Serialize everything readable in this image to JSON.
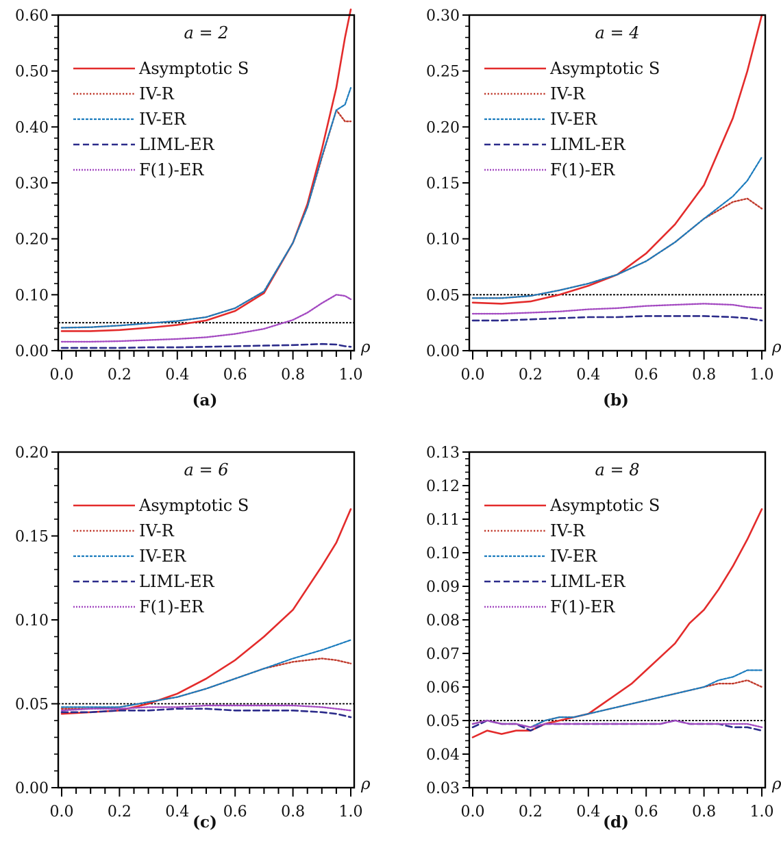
{
  "chart_data": [
    {
      "type": "line",
      "panel_label": "(a)",
      "title": "a = 2",
      "xlabel": "ρ",
      "xlim": [
        0,
        1
      ],
      "ylim": [
        0,
        0.6
      ],
      "xticks": [
        "0.0",
        "0.2",
        "0.4",
        "0.6",
        "0.8",
        "1.0"
      ],
      "yticks": [
        "0.00",
        "0.10",
        "0.20",
        "0.30",
        "0.40",
        "0.50",
        "0.60"
      ],
      "reference_line": 0.05,
      "x": [
        0.0,
        0.1,
        0.2,
        0.3,
        0.4,
        0.5,
        0.6,
        0.7,
        0.8,
        0.85,
        0.9,
        0.95,
        0.98,
        1.0
      ],
      "series": [
        {
          "name": "Asymptotic S",
          "color": "#e32b2b",
          "style": "solid",
          "values": [
            0.035,
            0.035,
            0.037,
            0.041,
            0.046,
            0.054,
            0.071,
            0.103,
            0.193,
            0.262,
            0.36,
            0.47,
            0.56,
            0.61
          ]
        },
        {
          "name": "IV-R",
          "color": "#c0392b",
          "style": "dotted",
          "values": [
            0.041,
            0.042,
            0.045,
            0.049,
            0.053,
            0.06,
            0.076,
            0.106,
            0.193,
            0.257,
            0.345,
            0.43,
            0.41,
            0.41
          ]
        },
        {
          "name": "IV-ER",
          "color": "#1a7bbd",
          "style": "dashed",
          "values": [
            0.041,
            0.042,
            0.045,
            0.049,
            0.053,
            0.06,
            0.076,
            0.106,
            0.193,
            0.257,
            0.347,
            0.43,
            0.44,
            0.47
          ]
        },
        {
          "name": "LIML-ER",
          "color": "#2b2b8a",
          "style": "longdash",
          "values": [
            0.005,
            0.005,
            0.005,
            0.006,
            0.006,
            0.007,
            0.008,
            0.009,
            0.01,
            0.011,
            0.012,
            0.011,
            0.008,
            0.007
          ]
        },
        {
          "name": "F(1)-ER",
          "color": "#a349c1",
          "style": "dotted-light",
          "values": [
            0.016,
            0.016,
            0.017,
            0.019,
            0.021,
            0.024,
            0.03,
            0.039,
            0.055,
            0.068,
            0.085,
            0.1,
            0.098,
            0.092
          ]
        }
      ]
    },
    {
      "type": "line",
      "panel_label": "(b)",
      "title": "a = 4",
      "xlabel": "ρ",
      "xlim": [
        0,
        1
      ],
      "ylim": [
        0,
        0.3
      ],
      "xticks": [
        "0.0",
        "0.2",
        "0.4",
        "0.6",
        "0.8",
        "1.0"
      ],
      "yticks": [
        "0.00",
        "0.05",
        "0.10",
        "0.15",
        "0.20",
        "0.25",
        "0.30"
      ],
      "reference_line": 0.05,
      "x": [
        0.0,
        0.1,
        0.2,
        0.3,
        0.4,
        0.5,
        0.6,
        0.7,
        0.8,
        0.9,
        0.95,
        1.0
      ],
      "series": [
        {
          "name": "Asymptotic S",
          "color": "#e32b2b",
          "style": "solid",
          "values": [
            0.043,
            0.042,
            0.044,
            0.05,
            0.058,
            0.068,
            0.087,
            0.113,
            0.148,
            0.208,
            0.25,
            0.3
          ]
        },
        {
          "name": "IV-R",
          "color": "#c0392b",
          "style": "dotted",
          "values": [
            0.047,
            0.047,
            0.049,
            0.054,
            0.06,
            0.068,
            0.08,
            0.097,
            0.118,
            0.133,
            0.136,
            0.127
          ]
        },
        {
          "name": "IV-ER",
          "color": "#1a7bbd",
          "style": "dashed",
          "values": [
            0.047,
            0.047,
            0.049,
            0.054,
            0.06,
            0.068,
            0.08,
            0.097,
            0.118,
            0.138,
            0.152,
            0.173
          ]
        },
        {
          "name": "LIML-ER",
          "color": "#2b2b8a",
          "style": "longdash",
          "values": [
            0.027,
            0.027,
            0.028,
            0.029,
            0.03,
            0.03,
            0.031,
            0.031,
            0.031,
            0.03,
            0.029,
            0.027
          ]
        },
        {
          "name": "F(1)-ER",
          "color": "#a349c1",
          "style": "dotted-light",
          "values": [
            0.033,
            0.033,
            0.034,
            0.035,
            0.037,
            0.038,
            0.04,
            0.041,
            0.042,
            0.041,
            0.039,
            0.038
          ]
        }
      ]
    },
    {
      "type": "line",
      "panel_label": "(c)",
      "title": "a = 6",
      "xlabel": "ρ",
      "xlim": [
        0,
        1
      ],
      "ylim": [
        0,
        0.2
      ],
      "xticks": [
        "0.0",
        "0.2",
        "0.4",
        "0.6",
        "0.8",
        "1.0"
      ],
      "yticks": [
        "0.00",
        "0.05",
        "0.10",
        "0.15",
        "0.20"
      ],
      "reference_line": 0.05,
      "x": [
        0.0,
        0.1,
        0.2,
        0.3,
        0.4,
        0.5,
        0.6,
        0.7,
        0.8,
        0.9,
        0.95,
        1.0
      ],
      "series": [
        {
          "name": "Asymptotic S",
          "color": "#e32b2b",
          "style": "solid",
          "values": [
            0.044,
            0.045,
            0.046,
            0.05,
            0.056,
            0.065,
            0.076,
            0.09,
            0.106,
            0.132,
            0.146,
            0.166
          ]
        },
        {
          "name": "IV-R",
          "color": "#c0392b",
          "style": "dotted",
          "values": [
            0.047,
            0.047,
            0.048,
            0.051,
            0.054,
            0.059,
            0.065,
            0.071,
            0.075,
            0.077,
            0.076,
            0.074
          ]
        },
        {
          "name": "IV-ER",
          "color": "#1a7bbd",
          "style": "dashed",
          "values": [
            0.048,
            0.048,
            0.048,
            0.051,
            0.054,
            0.059,
            0.065,
            0.071,
            0.077,
            0.082,
            0.085,
            0.088
          ]
        },
        {
          "name": "LIML-ER",
          "color": "#2b2b8a",
          "style": "longdash",
          "values": [
            0.045,
            0.045,
            0.046,
            0.046,
            0.047,
            0.047,
            0.046,
            0.046,
            0.046,
            0.045,
            0.044,
            0.042
          ]
        },
        {
          "name": "F(1)-ER",
          "color": "#a349c1",
          "style": "dotted-light",
          "values": [
            0.046,
            0.047,
            0.047,
            0.048,
            0.048,
            0.049,
            0.049,
            0.049,
            0.049,
            0.048,
            0.047,
            0.046
          ]
        }
      ]
    },
    {
      "type": "line",
      "panel_label": "(d)",
      "title": "a = 8",
      "xlabel": "ρ",
      "xlim": [
        0,
        1
      ],
      "ylim": [
        0.03,
        0.13
      ],
      "xticks": [
        "0.0",
        "0.2",
        "0.4",
        "0.6",
        "0.8",
        "1.0"
      ],
      "yticks": [
        "0.03",
        "0.04",
        "0.05",
        "0.06",
        "0.07",
        "0.08",
        "0.09",
        "0.10",
        "0.11",
        "0.12",
        "0.13"
      ],
      "reference_line": 0.05,
      "x": [
        0.0,
        0.05,
        0.1,
        0.15,
        0.2,
        0.25,
        0.3,
        0.35,
        0.4,
        0.45,
        0.5,
        0.55,
        0.6,
        0.65,
        0.7,
        0.75,
        0.8,
        0.85,
        0.9,
        0.95,
        1.0
      ],
      "series": [
        {
          "name": "Asymptotic S",
          "color": "#e32b2b",
          "style": "solid",
          "values": [
            0.045,
            0.047,
            0.046,
            0.047,
            0.047,
            0.049,
            0.05,
            0.051,
            0.052,
            0.055,
            0.058,
            0.061,
            0.065,
            0.069,
            0.073,
            0.079,
            0.083,
            0.089,
            0.096,
            0.104,
            0.113
          ]
        },
        {
          "name": "IV-R",
          "color": "#c0392b",
          "style": "dotted",
          "values": [
            0.049,
            0.05,
            0.049,
            0.049,
            0.048,
            0.05,
            0.051,
            0.051,
            0.052,
            0.053,
            0.054,
            0.055,
            0.056,
            0.057,
            0.058,
            0.059,
            0.06,
            0.061,
            0.061,
            0.062,
            0.06
          ]
        },
        {
          "name": "IV-ER",
          "color": "#1a7bbd",
          "style": "dashed",
          "values": [
            0.049,
            0.05,
            0.049,
            0.049,
            0.048,
            0.05,
            0.051,
            0.051,
            0.052,
            0.053,
            0.054,
            0.055,
            0.056,
            0.057,
            0.058,
            0.059,
            0.06,
            0.062,
            0.063,
            0.065,
            0.065
          ]
        },
        {
          "name": "LIML-ER",
          "color": "#2b2b8a",
          "style": "longdash",
          "values": [
            0.048,
            0.05,
            0.049,
            0.049,
            0.047,
            0.049,
            0.049,
            0.049,
            0.049,
            0.049,
            0.049,
            0.049,
            0.049,
            0.049,
            0.05,
            0.049,
            0.049,
            0.049,
            0.048,
            0.048,
            0.047
          ]
        },
        {
          "name": "F(1)-ER",
          "color": "#a349c1",
          "style": "dotted-light",
          "values": [
            0.049,
            0.05,
            0.049,
            0.049,
            0.048,
            0.049,
            0.049,
            0.049,
            0.049,
            0.049,
            0.049,
            0.049,
            0.049,
            0.049,
            0.05,
            0.049,
            0.049,
            0.049,
            0.049,
            0.049,
            0.048
          ]
        }
      ]
    }
  ]
}
